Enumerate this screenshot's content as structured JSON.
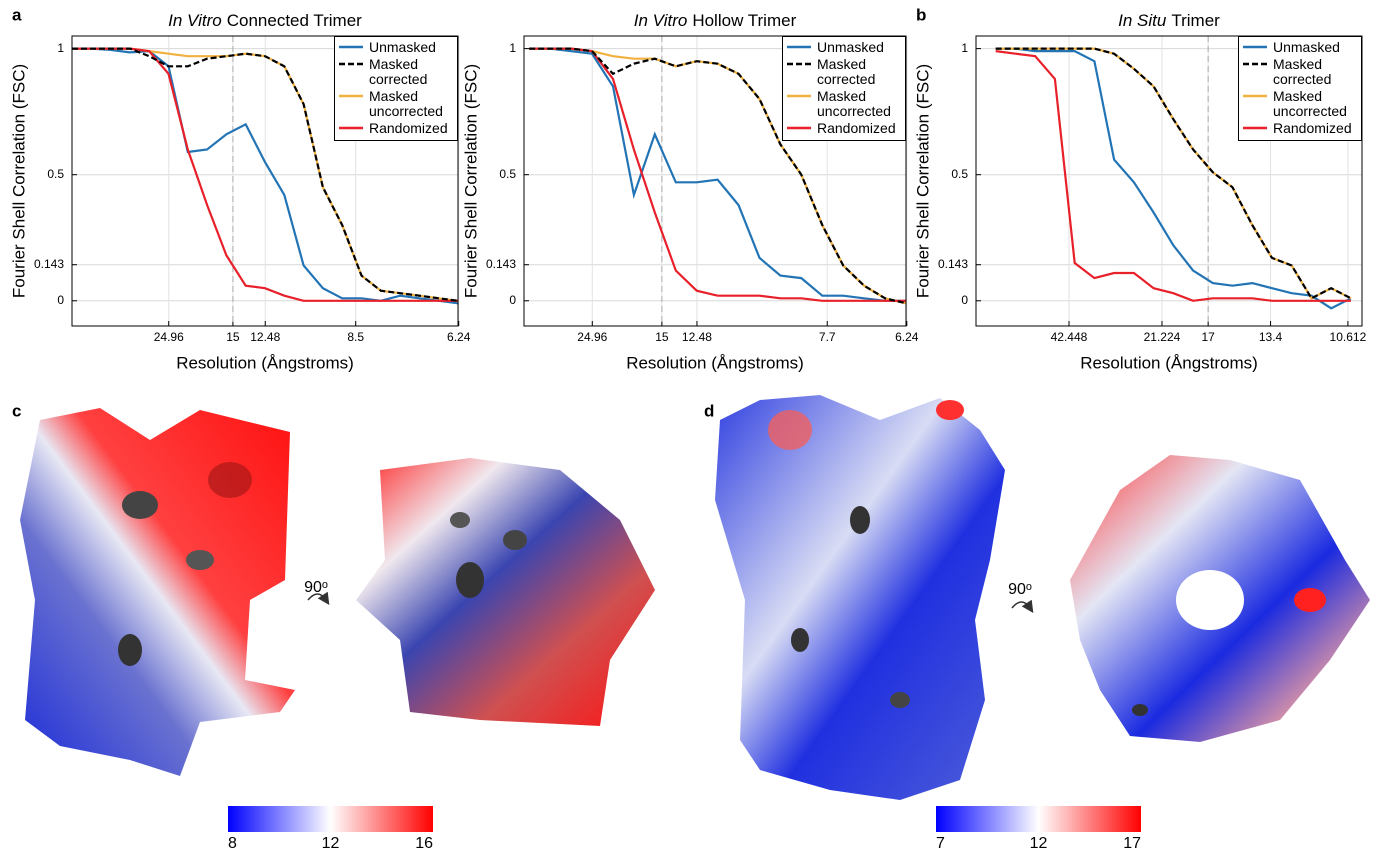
{
  "panel_labels": [
    "a",
    "b",
    "c",
    "d"
  ],
  "chart_data": [
    {
      "type": "line",
      "title_italic": "In Vitro",
      "title": "Connected Trimer",
      "xlabel": "Resolution (Ångstroms)",
      "ylabel": "Fourier Shell Correlation (FSC)",
      "xlim": [
        0,
        0.16
      ],
      "ylim": [
        -0.1,
        1.05
      ],
      "xticks": [
        {
          "value": 0.0401,
          "label": "24.96"
        },
        {
          "value": 0.0667,
          "label": "15"
        },
        {
          "value": 0.0801,
          "label": "12.48"
        },
        {
          "value": 0.1176,
          "label": "8.5"
        },
        {
          "value": 0.1603,
          "label": "6.24"
        }
      ],
      "yticks": [
        0,
        0.143,
        0.5,
        1
      ],
      "grid": true,
      "reference_x": 0.0667,
      "legend": "upper right",
      "x": [
        0,
        0.008,
        0.016,
        0.024,
        0.032,
        0.04,
        0.048,
        0.056,
        0.064,
        0.072,
        0.08,
        0.088,
        0.096,
        0.104,
        0.112,
        0.12,
        0.128,
        0.136,
        0.144,
        0.152,
        0.16
      ],
      "series": [
        {
          "name": "Unmasked",
          "color": "#2274b5",
          "values": [
            1,
            1,
            0.995,
            0.985,
            0.99,
            0.93,
            0.59,
            0.6,
            0.66,
            0.7,
            0.55,
            0.42,
            0.14,
            0.05,
            0.01,
            0.01,
            0,
            0.02,
            0.01,
            0,
            -0.01
          ]
        },
        {
          "name": "Masked corrected",
          "color": "#000000",
          "line_style": "dashed",
          "values": [
            1,
            1,
            1,
            1,
            0.97,
            0.93,
            0.93,
            0.96,
            0.97,
            0.98,
            0.97,
            0.93,
            0.78,
            0.45,
            0.3,
            0.1,
            0.04,
            0.03,
            0.02,
            0.01,
            0
          ]
        },
        {
          "name": "Masked uncorrected",
          "color": "#f2b13e",
          "values": [
            1,
            1,
            1,
            1,
            0.99,
            0.98,
            0.97,
            0.97,
            0.97,
            0.98,
            0.97,
            0.93,
            0.78,
            0.45,
            0.3,
            0.1,
            0.04,
            0.03,
            0.02,
            0.01,
            0
          ]
        },
        {
          "name": "Randomized",
          "color": "#e8202a",
          "values": [
            1,
            1,
            1,
            1,
            0.99,
            0.9,
            0.6,
            0.38,
            0.18,
            0.06,
            0.05,
            0.02,
            0,
            0,
            0,
            0,
            0,
            0,
            0,
            0,
            0
          ]
        }
      ]
    },
    {
      "type": "line",
      "title_italic": "In Vitro",
      "title": "Hollow Trimer",
      "xlabel": "Resolution (Ångstroms)",
      "ylabel": "Fourier Shell Correlation (FSC)",
      "xlim": [
        0.014,
        0.16
      ],
      "ylim": [
        -0.1,
        1.05
      ],
      "xticks": [
        {
          "value": 0.0401,
          "label": "24.96"
        },
        {
          "value": 0.0667,
          "label": "15"
        },
        {
          "value": 0.0801,
          "label": "12.48"
        },
        {
          "value": 0.1299,
          "label": "7.7"
        },
        {
          "value": 0.1603,
          "label": "6.24"
        }
      ],
      "yticks": [
        0,
        0.143,
        0.5,
        1
      ],
      "grid": true,
      "reference_x": 0.0667,
      "legend": "upper right",
      "x": [
        0.016,
        0.024,
        0.032,
        0.04,
        0.048,
        0.056,
        0.064,
        0.072,
        0.08,
        0.088,
        0.096,
        0.104,
        0.112,
        0.12,
        0.128,
        0.136,
        0.144,
        0.152,
        0.16
      ],
      "series": [
        {
          "name": "Unmasked",
          "color": "#2274b5",
          "values": [
            1,
            1,
            0.99,
            0.98,
            0.85,
            0.42,
            0.66,
            0.47,
            0.47,
            0.48,
            0.38,
            0.17,
            0.1,
            0.09,
            0.02,
            0.02,
            0.01,
            0,
            0
          ]
        },
        {
          "name": "Masked corrected",
          "color": "#000000",
          "line_style": "dashed",
          "values": [
            1,
            1,
            1,
            0.99,
            0.9,
            0.94,
            0.96,
            0.93,
            0.95,
            0.94,
            0.9,
            0.8,
            0.62,
            0.5,
            0.3,
            0.14,
            0.06,
            0.01,
            -0.01
          ]
        },
        {
          "name": "Masked uncorrected",
          "color": "#f2b13e",
          "values": [
            1,
            1,
            1,
            0.99,
            0.97,
            0.96,
            0.96,
            0.93,
            0.95,
            0.94,
            0.9,
            0.8,
            0.62,
            0.5,
            0.3,
            0.14,
            0.06,
            0.01,
            -0.01
          ]
        },
        {
          "name": "Randomized",
          "color": "#e8202a",
          "values": [
            1,
            1,
            1,
            0.99,
            0.88,
            0.6,
            0.35,
            0.12,
            0.04,
            0.02,
            0.02,
            0.02,
            0.01,
            0.01,
            0,
            0,
            0,
            0,
            0
          ]
        }
      ]
    },
    {
      "type": "line",
      "title_italic": "In Situ",
      "title": "Trimer",
      "xlabel": "Resolution (Ångstroms)",
      "ylabel": "Fourier Shell Correlation (FSC)",
      "xlim": [
        0,
        0.0978
      ],
      "ylim": [
        -0.1,
        1.05
      ],
      "xticks": [
        {
          "value": 0.02356,
          "label": "42.448"
        },
        {
          "value": 0.04712,
          "label": "21.224"
        },
        {
          "value": 0.05882,
          "label": "17"
        },
        {
          "value": 0.07463,
          "label": "13.4"
        },
        {
          "value": 0.09423,
          "label": "10.612"
        }
      ],
      "yticks": [
        0,
        0.143,
        0.5,
        1
      ],
      "grid": true,
      "reference_x": 0.05882,
      "legend": "upper right",
      "x": [
        0.005,
        0.01,
        0.015,
        0.02,
        0.025,
        0.03,
        0.035,
        0.04,
        0.045,
        0.05,
        0.055,
        0.06,
        0.065,
        0.07,
        0.075,
        0.08,
        0.085,
        0.09,
        0.095
      ],
      "series": [
        {
          "name": "Unmasked",
          "color": "#2274b5",
          "values": [
            1,
            1,
            0.99,
            0.99,
            0.99,
            0.95,
            0.56,
            0.47,
            0.35,
            0.22,
            0.12,
            0.07,
            0.06,
            0.07,
            0.05,
            0.03,
            0.02,
            -0.03,
            0.01
          ]
        },
        {
          "name": "Masked corrected",
          "color": "#000000",
          "line_style": "dashed",
          "values": [
            1,
            1,
            1,
            1,
            1,
            1,
            0.98,
            0.92,
            0.85,
            0.72,
            0.6,
            0.51,
            0.45,
            0.3,
            0.17,
            0.14,
            0.01,
            0.05,
            0.01
          ]
        },
        {
          "name": "Masked uncorrected",
          "color": "#f2b13e",
          "values": [
            1,
            1,
            1,
            1,
            1,
            1,
            0.98,
            0.92,
            0.85,
            0.72,
            0.6,
            0.51,
            0.45,
            0.3,
            0.17,
            0.14,
            0.01,
            0.05,
            0.01
          ]
        },
        {
          "name": "Randomized",
          "color": "#e8202a",
          "values": [
            0.99,
            0.98,
            0.97,
            0.88,
            0.15,
            0.09,
            0.11,
            0.11,
            0.05,
            0.03,
            0,
            0.01,
            0.01,
            0.01,
            0,
            0,
            0,
            0,
            0
          ]
        }
      ]
    }
  ],
  "figures": [
    {
      "rotation_label": "90ᵒ",
      "colorbar": {
        "range": [
          8,
          16
        ],
        "ticks": [
          8,
          12,
          16
        ],
        "colors": [
          "#0000ff",
          "#ffffff",
          "#ff0000"
        ]
      }
    },
    {
      "rotation_label": "90ᵒ",
      "colorbar": {
        "range": [
          7,
          17
        ],
        "ticks": [
          7,
          12,
          17
        ],
        "colors": [
          "#0000ff",
          "#ffffff",
          "#ff0000"
        ]
      }
    }
  ]
}
